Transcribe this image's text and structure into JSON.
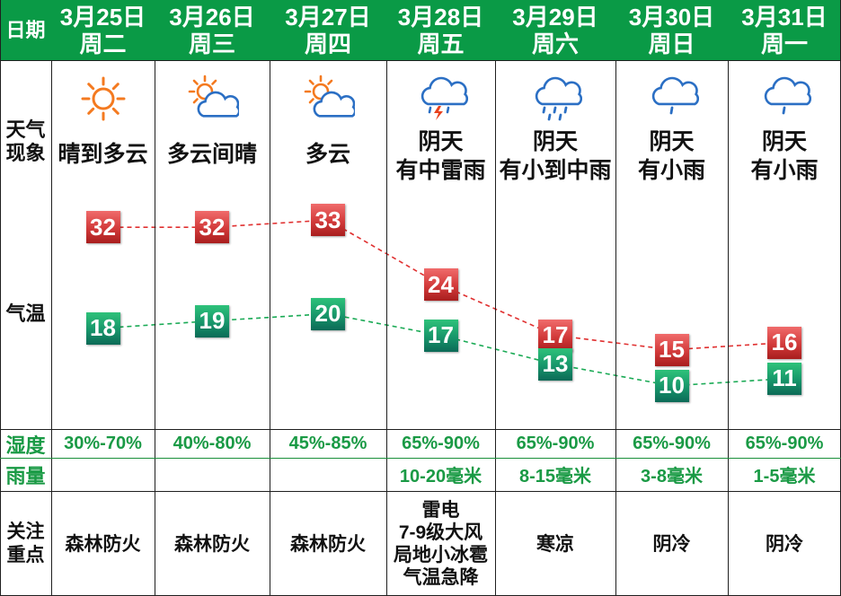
{
  "header": {
    "date_label": "日期",
    "days": [
      {
        "date": "3月25日",
        "weekday": "周二"
      },
      {
        "date": "3月26日",
        "weekday": "周三"
      },
      {
        "date": "3月27日",
        "weekday": "周四"
      },
      {
        "date": "3月28日",
        "weekday": "周五"
      },
      {
        "date": "3月29日",
        "weekday": "周六"
      },
      {
        "date": "3月30日",
        "weekday": "周日"
      },
      {
        "date": "3月31日",
        "weekday": "周一"
      }
    ]
  },
  "weather": {
    "label": "天气\n现象",
    "items": [
      {
        "text": "晴到多云",
        "icon": "sun-icon"
      },
      {
        "text": "多云间晴",
        "icon": "sun-cloud-icon"
      },
      {
        "text": "多云",
        "icon": "sun-cloud-icon"
      },
      {
        "text": "阴天\n有中雷雨",
        "icon": "thunderstorm-icon"
      },
      {
        "text": "阴天\n有小到中雨",
        "icon": "rain-icon"
      },
      {
        "text": "阴天\n有小雨",
        "icon": "light-rain-icon"
      },
      {
        "text": "阴天\n有小雨",
        "icon": "light-rain-icon"
      }
    ]
  },
  "temperature": {
    "label": "气温",
    "high": [
      32,
      32,
      33,
      24,
      17,
      15,
      16
    ],
    "low": [
      18,
      19,
      20,
      17,
      13,
      10,
      11
    ]
  },
  "humidity": {
    "label": "湿度",
    "values": [
      "30%-70%",
      "40%-80%",
      "45%-85%",
      "65%-90%",
      "65%-90%",
      "65%-90%",
      "65%-90%"
    ]
  },
  "rainfall": {
    "label": "雨量",
    "values": [
      "",
      "",
      "",
      "10-20毫米",
      "8-15毫米",
      "3-8毫米",
      "1-5毫米"
    ]
  },
  "focus": {
    "label": "关注\n重点",
    "values": [
      "森林防火",
      "森林防火",
      "森林防火",
      "雷电\n7-9级大风\n局地小冰雹\n气温急降",
      "寒凉",
      "阴冷",
      "阴冷"
    ]
  },
  "colors": {
    "header_bg": "#0a9a46",
    "green_text": "#1a9a45",
    "high_line": "#e03030",
    "low_line": "#1aaa55",
    "sun": "#f47a20",
    "cloud": "#2b6fc4",
    "rain": "#2b6fc4",
    "lightning": "#e8401c"
  }
}
